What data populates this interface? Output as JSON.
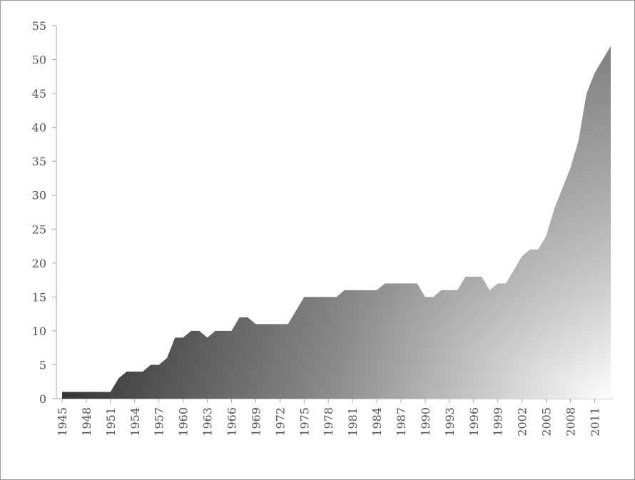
{
  "chart_data": {
    "type": "area",
    "title": "",
    "xlabel": "",
    "ylabel": "",
    "x": [
      1945,
      1946,
      1947,
      1948,
      1949,
      1950,
      1951,
      1952,
      1953,
      1954,
      1955,
      1956,
      1957,
      1958,
      1959,
      1960,
      1961,
      1962,
      1963,
      1964,
      1965,
      1966,
      1967,
      1968,
      1969,
      1970,
      1971,
      1972,
      1973,
      1974,
      1975,
      1976,
      1977,
      1978,
      1979,
      1980,
      1981,
      1982,
      1983,
      1984,
      1985,
      1986,
      1987,
      1988,
      1989,
      1990,
      1991,
      1992,
      1993,
      1994,
      1995,
      1996,
      1997,
      1998,
      1999,
      2000,
      2001,
      2002,
      2003,
      2004,
      2005,
      2006,
      2007,
      2008,
      2009,
      2010,
      2011,
      2012,
      2013
    ],
    "series": [
      {
        "values": [
          1,
          1,
          1,
          1,
          1,
          1,
          1,
          3,
          4,
          4,
          4,
          5,
          5,
          6,
          9,
          9,
          10,
          10,
          9,
          10,
          10,
          10,
          12,
          12,
          11,
          11,
          11,
          11,
          11,
          13,
          15,
          15,
          15,
          15,
          15,
          16,
          16,
          16,
          16,
          16,
          17,
          17,
          17,
          17,
          17,
          15,
          15,
          16,
          16,
          16,
          18,
          18,
          18,
          16,
          17,
          17,
          19,
          21,
          22,
          22,
          24,
          28,
          31,
          34,
          38,
          45,
          48,
          50,
          52
        ]
      }
    ],
    "xticks": [
      "1945",
      "1948",
      "1951",
      "1954",
      "1957",
      "1960",
      "1963",
      "1966",
      "1969",
      "1972",
      "1975",
      "1978",
      "1981",
      "1984",
      "1987",
      "1990",
      "1993",
      "1996",
      "1999",
      "2002",
      "2005",
      "2008",
      "2011"
    ],
    "yticks": [
      "0",
      "5",
      "10",
      "15",
      "20",
      "25",
      "30",
      "35",
      "40",
      "45",
      "50",
      "55"
    ],
    "ylim": [
      0,
      55
    ],
    "xlim": [
      1945,
      2013
    ],
    "grid": false,
    "legend": "none",
    "fill_gradient": {
      "dark": "#2e2e2e",
      "mid": "#8a8a8a",
      "light": "#ffffff",
      "top_right": "#727272"
    },
    "axis_color": "#a6a6a6",
    "tick_label_color": "#555555"
  }
}
